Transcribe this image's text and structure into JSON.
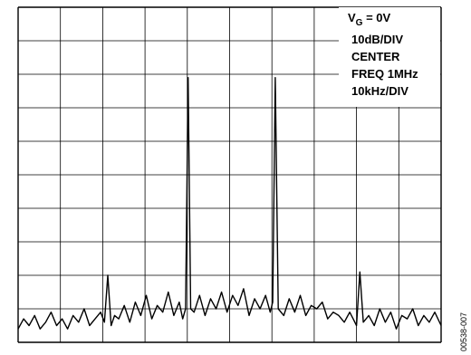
{
  "chart_data": {
    "type": "line",
    "title": "",
    "xlabel": "",
    "ylabel": "",
    "grid": true,
    "divisions": {
      "x": 10,
      "y": 10
    },
    "xlim": [
      950,
      1050
    ],
    "ylim": [
      -100,
      0
    ],
    "x_unit": "kHz",
    "y_unit": "dB",
    "annotations": {
      "vg_main": "V",
      "vg_sub": "G",
      "vg_rest": " = 0V",
      "scale_y": "10dB/DIV",
      "center": "CENTER",
      "center_freq": "FREQ 1MHz",
      "scale_x": "10kHz/DIV"
    },
    "figure_id": "00538-007",
    "series": [
      {
        "color": "#000000",
        "x": [
          950,
          951.3,
          952.6,
          953.9,
          955.2,
          956.5,
          957.8,
          959.1,
          960.4,
          961.7,
          963,
          964.3,
          965.6,
          966.9,
          968.2,
          969.5,
          970.4,
          971.2,
          972,
          972.8,
          973.8,
          975.1,
          976.4,
          977.7,
          979,
          980.3,
          981.6,
          982.9,
          984.2,
          985.5,
          986.8,
          988.1,
          988.9,
          989.6,
          990.2,
          990.8,
          991.6,
          992.9,
          994.2,
          995.5,
          996.8,
          998.1,
          999.4,
          1000.7,
          1002,
          1003.3,
          1004.6,
          1005.9,
          1007.2,
          1008.5,
          1009.6,
          1010.2,
          1010.8,
          1011.5,
          1012.8,
          1014.1,
          1015.4,
          1016.7,
          1018,
          1019.3,
          1020.6,
          1021.9,
          1023.2,
          1024.5,
          1025.8,
          1027.1,
          1028.4,
          1029.2,
          1030,
          1030.8,
          1031.6,
          1032.9,
          1034.2,
          1035.5,
          1036.8,
          1038.1,
          1039.4,
          1040.7,
          1042,
          1043.3,
          1044.6,
          1045.9,
          1047.2,
          1048.5,
          1050
        ],
        "y": [
          -96,
          -93,
          -95,
          -92,
          -96,
          -94,
          -91,
          -95,
          -93,
          -96,
          -92,
          -94,
          -90,
          -95,
          -93,
          -91,
          -94,
          -80,
          -95,
          -92,
          -93,
          -89,
          -94,
          -88,
          -92,
          -86,
          -93,
          -89,
          -91,
          -85,
          -92,
          -88,
          -93,
          -90,
          -21,
          -90,
          -91,
          -86,
          -92,
          -87,
          -90,
          -85,
          -91,
          -86,
          -89,
          -84,
          -92,
          -87,
          -90,
          -86,
          -91,
          -88,
          -21,
          -90,
          -92,
          -87,
          -91,
          -86,
          -92,
          -89,
          -90,
          -88,
          -93,
          -91,
          -92,
          -94,
          -91,
          -93,
          -95,
          -79,
          -94,
          -92,
          -95,
          -90,
          -94,
          -91,
          -96,
          -92,
          -93,
          -90,
          -95,
          -92,
          -94,
          -91,
          -95
        ]
      }
    ]
  }
}
